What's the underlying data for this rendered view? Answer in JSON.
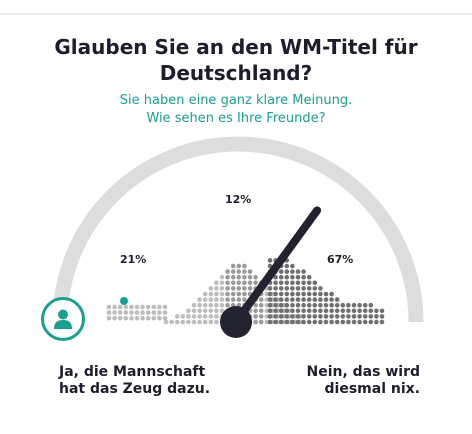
{
  "poll": {
    "question_line1": "Glauben Sie an den WM-Titel für",
    "question_line2": "Deutschland?",
    "subtitle_line1": "Sie haben eine ganz klare Meinung.",
    "subtitle_line2": "Wie sehen es Ihre Freunde?"
  },
  "results": {
    "yes_percent": "21%",
    "middle_percent": "12%",
    "no_percent": "67%"
  },
  "answers": {
    "yes_line1": "Ja, die Mannschaft",
    "yes_line2": "hat das Zeug dazu.",
    "no_line1": "Nein, das wird",
    "no_line2": "diesmal nix."
  },
  "gauge": {
    "needle_value_percent": 70
  },
  "icons": {
    "user": "user-icon"
  },
  "colors": {
    "accent": "#1b9f8e",
    "text": "#1e1e2b",
    "gauge_track": "#dddddd",
    "dots_light": "#bdbdbd",
    "dots_mid": "#9a9a9a",
    "dots_dark": "#6f6f6f",
    "needle": "#23232f"
  }
}
